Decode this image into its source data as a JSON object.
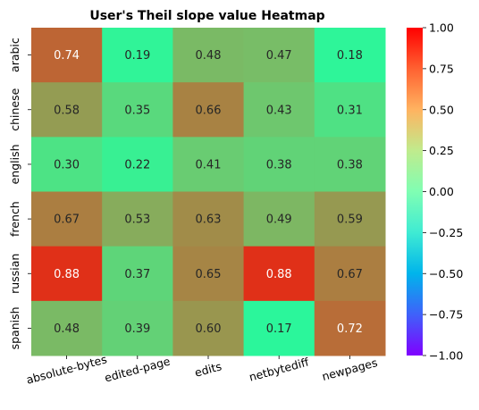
{
  "chart_data": {
    "type": "heatmap",
    "title": "User's Theil slope value Heatmap",
    "xlabel": "",
    "ylabel": "",
    "x_categories": [
      "absolute-bytes",
      "edited-page",
      "edits",
      "netbytediff",
      "newpages"
    ],
    "y_categories": [
      "arabic",
      "chinese",
      "english",
      "french",
      "russian",
      "spanish"
    ],
    "values": [
      [
        0.74,
        0.19,
        0.48,
        0.47,
        0.18
      ],
      [
        0.58,
        0.35,
        0.66,
        0.43,
        0.31
      ],
      [
        0.3,
        0.22,
        0.41,
        0.38,
        0.38
      ],
      [
        0.67,
        0.53,
        0.63,
        0.49,
        0.59
      ],
      [
        0.88,
        0.37,
        0.65,
        0.88,
        0.67
      ],
      [
        0.48,
        0.39,
        0.6,
        0.17,
        0.72
      ]
    ],
    "value_labels": [
      [
        "0.74",
        "0.19",
        "0.48",
        "0.47",
        "0.18"
      ],
      [
        "0.58",
        "0.35",
        "0.66",
        "0.43",
        "0.31"
      ],
      [
        "0.30",
        "0.22",
        "0.41",
        "0.38",
        "0.38"
      ],
      [
        "0.67",
        "0.53",
        "0.63",
        "0.49",
        "0.59"
      ],
      [
        "0.88",
        "0.37",
        "0.65",
        "0.88",
        "0.67"
      ],
      [
        "0.48",
        "0.39",
        "0.60",
        "0.17",
        "0.72"
      ]
    ],
    "colorbar": {
      "vmin": -1.0,
      "vmax": 1.0,
      "colormap": "rainbow",
      "ticks": [
        1.0,
        0.75,
        0.5,
        0.25,
        0.0,
        -0.25,
        -0.5,
        -0.75,
        -1.0
      ],
      "tick_labels": [
        "1.00",
        "0.75",
        "0.50",
        "0.25",
        "0.00",
        "−0.25",
        "−0.50",
        "−0.75",
        "−1.00"
      ]
    },
    "grid": false,
    "legend": "colorbar-right"
  }
}
